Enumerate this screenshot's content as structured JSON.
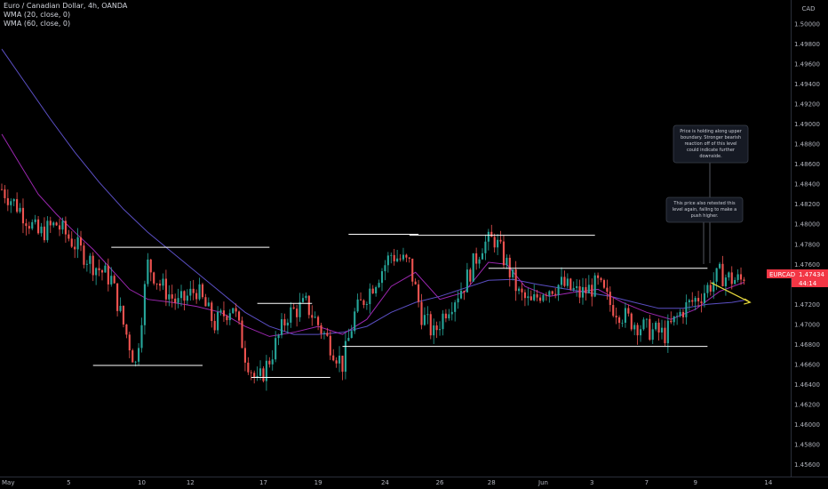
{
  "header": {
    "title": "Euro / Canadian Dollar, 4h, OANDA",
    "indicators": [
      "WMA (20, close, 0)",
      "WMA (60, close, 0)"
    ]
  },
  "price_axis": {
    "currency": "CAD"
  },
  "price_badge": {
    "symbol": "EURCAD",
    "price": "1.47434",
    "countdown": "44:14"
  },
  "annotations": [
    {
      "lines": [
        "Price is holding along upper",
        "boundary. Stronger bearish",
        "reaction off of this level",
        "could indicate further",
        "downside."
      ]
    },
    {
      "lines": [
        "This price also retested this",
        "level again, failing to make a",
        "push higher."
      ]
    }
  ],
  "colors": {
    "background": "#000000",
    "up": "#26a69a",
    "down": "#ef5350",
    "wma20": "#9c27b0",
    "wma60": "#5b4fc4",
    "level_lines": "#ffffff",
    "projection_arrow": "#e6d83a",
    "badge": "#f23645"
  },
  "chart_data": {
    "type": "candlestick",
    "title": "Euro / Canadian Dollar, 4h, OANDA",
    "x_tick_labels": [
      "May",
      "5",
      "10",
      "12",
      "17",
      "19",
      "24",
      "26",
      "28",
      "Jun",
      "3",
      "7",
      "9",
      "14"
    ],
    "y_tick_labels": [
      "1.50200",
      "1.50000",
      "1.49800",
      "1.49600",
      "1.49400",
      "1.49200",
      "1.49000",
      "1.48800",
      "1.48600",
      "1.48400",
      "1.48200",
      "1.48000",
      "1.47800",
      "1.47600",
      "1.47400",
      "1.47200",
      "1.47000",
      "1.46800",
      "1.46600",
      "1.46400",
      "1.46200",
      "1.46000",
      "1.45800",
      "1.45600"
    ],
    "ylim": [
      1.4548,
      1.5024
    ],
    "last_price": 1.47434,
    "close_path": [
      [
        0,
        1.4835
      ],
      [
        6,
        1.4815
      ],
      [
        12,
        1.479
      ],
      [
        18,
        1.48
      ],
      [
        24,
        1.478
      ],
      [
        30,
        1.476
      ],
      [
        36,
        1.4745
      ],
      [
        40,
        1.47
      ],
      [
        44,
        1.466
      ],
      [
        48,
        1.476
      ],
      [
        52,
        1.474
      ],
      [
        58,
        1.472
      ],
      [
        64,
        1.4735
      ],
      [
        70,
        1.47
      ],
      [
        76,
        1.472
      ],
      [
        80,
        1.467
      ],
      [
        84,
        1.464
      ],
      [
        88,
        1.4665
      ],
      [
        94,
        1.471
      ],
      [
        100,
        1.472
      ],
      [
        104,
        1.47
      ],
      [
        108,
        1.468
      ],
      [
        112,
        1.466
      ],
      [
        116,
        1.471
      ],
      [
        122,
        1.474
      ],
      [
        128,
        1.477
      ],
      [
        134,
        1.476
      ],
      [
        138,
        1.471
      ],
      [
        142,
        1.469
      ],
      [
        146,
        1.4715
      ],
      [
        152,
        1.474
      ],
      [
        158,
        1.478
      ],
      [
        162,
        1.4785
      ],
      [
        166,
        1.476
      ],
      [
        170,
        1.473
      ],
      [
        174,
        1.472
      ],
      [
        178,
        1.4735
      ],
      [
        184,
        1.474
      ],
      [
        190,
        1.473
      ],
      [
        196,
        1.474
      ],
      [
        200,
        1.472
      ],
      [
        206,
        1.4705
      ],
      [
        212,
        1.4695
      ],
      [
        218,
        1.469
      ],
      [
        224,
        1.4715
      ],
      [
        230,
        1.473
      ],
      [
        236,
        1.475
      ],
      [
        240,
        1.4745
      ],
      [
        244,
        1.47434
      ]
    ],
    "wma20": [
      [
        0,
        1.489
      ],
      [
        6,
        1.486
      ],
      [
        12,
        1.483
      ],
      [
        18,
        1.481
      ],
      [
        24,
        1.4792
      ],
      [
        30,
        1.4775
      ],
      [
        36,
        1.4755
      ],
      [
        42,
        1.4735
      ],
      [
        48,
        1.4725
      ],
      [
        56,
        1.4722
      ],
      [
        64,
        1.4718
      ],
      [
        72,
        1.4712
      ],
      [
        80,
        1.4698
      ],
      [
        88,
        1.4688
      ],
      [
        96,
        1.4692
      ],
      [
        104,
        1.4698
      ],
      [
        112,
        1.469
      ],
      [
        120,
        1.4705
      ],
      [
        128,
        1.4738
      ],
      [
        136,
        1.4752
      ],
      [
        144,
        1.4725
      ],
      [
        152,
        1.4732
      ],
      [
        160,
        1.4762
      ],
      [
        166,
        1.476
      ],
      [
        172,
        1.4738
      ],
      [
        180,
        1.4728
      ],
      [
        188,
        1.4732
      ],
      [
        196,
        1.4735
      ],
      [
        204,
        1.4722
      ],
      [
        212,
        1.4712
      ],
      [
        220,
        1.4705
      ],
      [
        228,
        1.4715
      ],
      [
        236,
        1.4733
      ],
      [
        244,
        1.4742
      ]
    ],
    "wma60": [
      [
        0,
        1.4975
      ],
      [
        8,
        1.494
      ],
      [
        16,
        1.4905
      ],
      [
        24,
        1.4872
      ],
      [
        32,
        1.4842
      ],
      [
        40,
        1.4815
      ],
      [
        48,
        1.4792
      ],
      [
        56,
        1.4772
      ],
      [
        64,
        1.4752
      ],
      [
        72,
        1.4732
      ],
      [
        80,
        1.4712
      ],
      [
        88,
        1.4698
      ],
      [
        96,
        1.469
      ],
      [
        104,
        1.469
      ],
      [
        112,
        1.4692
      ],
      [
        120,
        1.4698
      ],
      [
        128,
        1.4712
      ],
      [
        136,
        1.4722
      ],
      [
        144,
        1.4728
      ],
      [
        152,
        1.4736
      ],
      [
        160,
        1.4744
      ],
      [
        168,
        1.4745
      ],
      [
        176,
        1.474
      ],
      [
        184,
        1.4736
      ],
      [
        192,
        1.4732
      ],
      [
        200,
        1.4728
      ],
      [
        208,
        1.4722
      ],
      [
        216,
        1.4716
      ],
      [
        224,
        1.4716
      ],
      [
        232,
        1.472
      ],
      [
        240,
        1.4722
      ],
      [
        244,
        1.4724
      ]
    ],
    "levels": [
      {
        "from": 36,
        "to": 88,
        "price": 1.4777
      },
      {
        "from": 30,
        "to": 66,
        "price": 1.4659
      },
      {
        "from": 84,
        "to": 102,
        "price": 1.4721
      },
      {
        "from": 82,
        "to": 108,
        "price": 1.4647
      },
      {
        "from": 114,
        "to": 137,
        "price": 1.479
      },
      {
        "from": 134,
        "to": 195,
        "price": 1.4789
      },
      {
        "from": 112,
        "to": 232,
        "price": 1.4678
      },
      {
        "from": 160,
        "to": 232,
        "price": 1.4756
      }
    ],
    "projection": {
      "from": [
        232,
        1.47434
      ],
      "to": [
        246,
        1.4722
      ]
    }
  }
}
